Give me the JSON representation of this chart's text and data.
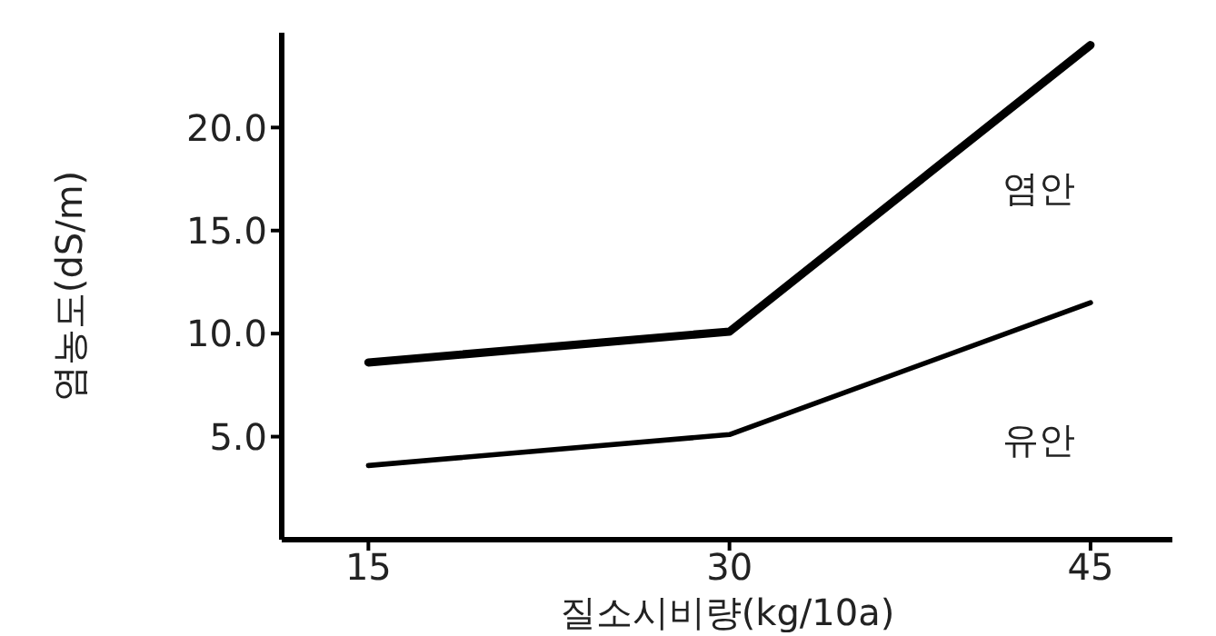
{
  "chart_data": {
    "type": "line",
    "xlabel": "질소시비량(kg/10a)",
    "ylabel": "염농도(dS/m)",
    "x": [
      15,
      30,
      45
    ],
    "series": [
      {
        "name": "염안",
        "color": "#000000",
        "values": [
          8.6,
          10.1,
          24.0
        ]
      },
      {
        "name": "유안",
        "color": "#000000",
        "values": [
          3.6,
          5.1,
          11.5
        ]
      }
    ],
    "xlim": [
      11.4,
      48.4
    ],
    "xticks": [
      15,
      30,
      45
    ],
    "ylim": [
      0,
      24.6
    ],
    "yticks": [
      {
        "value": 5,
        "label": "5.0"
      },
      {
        "value": 10,
        "label": "10.0"
      },
      {
        "value": 15,
        "label": "15.0"
      },
      {
        "value": 20,
        "label": "20.0"
      }
    ],
    "grid": false,
    "legend": false,
    "marker": "none",
    "line_style": "solid"
  }
}
